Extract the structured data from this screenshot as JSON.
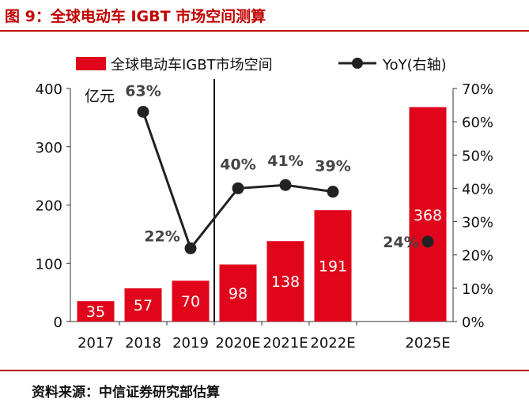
{
  "figure_title": "图 9：全球电动车 IGBT 市场空间测算",
  "source": "资料来源：中信证券研究部估算",
  "colors": {
    "accent": "#c00000",
    "bar": "#e0051b",
    "line": "#222222",
    "text": "#111111",
    "yoy_label": "#444444"
  },
  "chart_data": {
    "type": "bar",
    "categories": [
      "2017",
      "2018",
      "2019",
      "2020E",
      "2021E",
      "2022E",
      "2025E"
    ],
    "series": [
      {
        "name": "全球电动车IGBT市场空间",
        "type": "bar",
        "axis": "left",
        "values": [
          35,
          57,
          70,
          98,
          138,
          191,
          368
        ]
      },
      {
        "name": "YoY(右轴)",
        "type": "line",
        "axis": "right",
        "values": [
          null,
          63,
          22,
          40,
          41,
          39,
          24
        ],
        "labels": [
          null,
          "63%",
          "22%",
          "40%",
          "41%",
          "39%",
          "24%"
        ]
      }
    ],
    "left_axis": {
      "unit_label": "亿元",
      "ylim": [
        0,
        400
      ],
      "ticks": [
        "0",
        "100",
        "200",
        "300",
        "400"
      ]
    },
    "right_axis": {
      "ylim": [
        0,
        70
      ],
      "ticks": [
        "0%",
        "10%",
        "20%",
        "30%",
        "40%",
        "50%",
        "60%",
        "70%"
      ]
    },
    "grid": false,
    "legend": "top",
    "separator_after": "2019"
  }
}
